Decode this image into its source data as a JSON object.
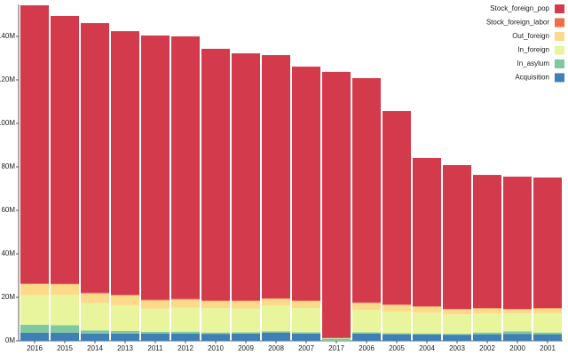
{
  "chart_data": {
    "type": "stacked_bar",
    "categories": [
      "2016",
      "2015",
      "2014",
      "2013",
      "2011",
      "2012",
      "2010",
      "2009",
      "2008",
      "2007",
      "2017",
      "2006",
      "2005",
      "2004",
      "2003",
      "2002",
      "2000",
      "2001"
    ],
    "series": [
      {
        "name": "Acquisition",
        "color": "#3f7fb5",
        "values": [
          3.7,
          3.7,
          3.3,
          3.3,
          3.3,
          3.3,
          3.2,
          3.3,
          3.8,
          3.3,
          0,
          3.3,
          3.0,
          2.9,
          2.8,
          3.0,
          3.2,
          3.0
        ]
      },
      {
        "name": "In_asylum",
        "color": "#80c9a0",
        "values": [
          3.7,
          3.5,
          1.5,
          1.2,
          0.8,
          0.9,
          0.6,
          0.6,
          0.6,
          0.6,
          1.0,
          0.6,
          0.5,
          0.5,
          0.4,
          0.8,
          1.2,
          0.8
        ]
      },
      {
        "name": "In_foreign",
        "color": "#e8f59c",
        "values": [
          13.5,
          13.9,
          12.5,
          11.8,
          10.7,
          11,
          11.2,
          11,
          11.8,
          11.2,
          0.3,
          10.3,
          10,
          9.6,
          9,
          8.8,
          8.3,
          8.8
        ]
      },
      {
        "name": "Out_foreign",
        "color": "#fdd98a",
        "values": [
          5.2,
          4.9,
          4.5,
          4.6,
          3.8,
          3.8,
          3.3,
          3.4,
          3.1,
          3.2,
          0,
          3.2,
          3.0,
          2.7,
          2.3,
          2.3,
          1.8,
          2.3
        ]
      },
      {
        "name": "Stock_foreign_labor",
        "color": "#f26d43",
        "values": [
          0.3,
          0.3,
          0.3,
          0.3,
          0.3,
          0.3,
          0.3,
          0.3,
          0.3,
          0.3,
          0,
          0.2,
          0.2,
          0.2,
          0.2,
          0.2,
          0.2,
          0.2
        ]
      },
      {
        "name": "Stock_foreign_pop",
        "color": "#d33a4c",
        "values": [
          127.9,
          123.1,
          124.0,
          121.2,
          121.5,
          120.7,
          115.7,
          113.6,
          111.8,
          107.5,
          122.4,
          103.2,
          89.0,
          68.2,
          66.1,
          61.2,
          60.8,
          60.0
        ]
      }
    ],
    "ylim": [
      0,
      154.7
    ],
    "yticks": [
      {
        "value": 0,
        "label": "0M"
      },
      {
        "value": 20,
        "label": "20M"
      },
      {
        "value": 40,
        "label": "40M"
      },
      {
        "value": 60,
        "label": "60M"
      },
      {
        "value": 80,
        "label": "80M"
      },
      {
        "value": 100,
        "label": "100M"
      },
      {
        "value": 120,
        "label": "120M"
      },
      {
        "value": 140,
        "label": "140M"
      }
    ],
    "legend": "top-right"
  }
}
